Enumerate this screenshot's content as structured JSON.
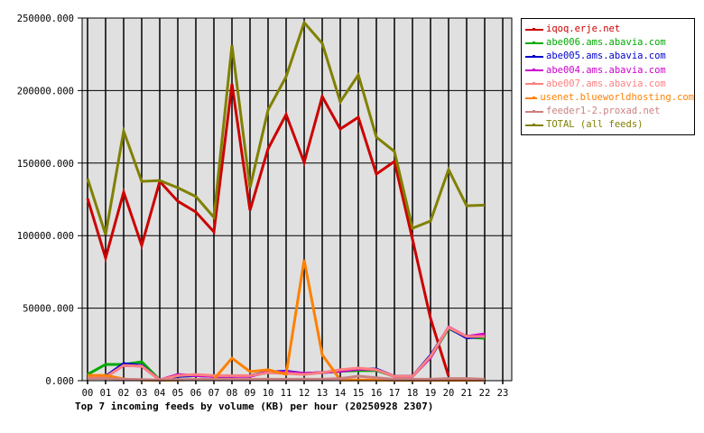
{
  "chart_data": {
    "type": "line",
    "title": "Top 7 incoming feeds by volume (KB) per hour (20250928 2307)",
    "xlabel": "",
    "ylabel": "",
    "ylim": [
      0,
      250000
    ],
    "yticks": [
      "0.000",
      "50000.000",
      "100000.000",
      "150000.000",
      "200000.000",
      "250000.000"
    ],
    "x": [
      "00",
      "01",
      "02",
      "03",
      "04",
      "05",
      "06",
      "07",
      "08",
      "09",
      "10",
      "11",
      "12",
      "13",
      "14",
      "15",
      "16",
      "17",
      "18",
      "19",
      "20",
      "21",
      "22",
      "23"
    ],
    "grid": true,
    "legend_position": "right",
    "series": [
      {
        "name": "iqoq.erje.net",
        "color": "#cc0000",
        "values": [
          125600,
          84600,
          130000,
          93300,
          137400,
          123700,
          116300,
          102600,
          204600,
          117500,
          159800,
          183500,
          150500,
          195900,
          173500,
          181600,
          142400,
          151100,
          97600,
          42900,
          3100,
          null,
          null,
          null
        ]
      },
      {
        "name": "abe006.ams.abavia.com",
        "color": "#00aa00",
        "values": [
          4300,
          11200,
          11200,
          13000,
          500,
          3000,
          3500,
          3000,
          3000,
          3500,
          5500,
          6000,
          5000,
          5600,
          6500,
          7000,
          7000,
          3000,
          3000,
          16000,
          36000,
          30000,
          29200,
          null
        ]
      },
      {
        "name": "abe005.ams.abavia.com",
        "color": "#0000cc",
        "values": [
          2500,
          3000,
          11800,
          10500,
          500,
          3000,
          3500,
          3000,
          3000,
          3500,
          6000,
          6500,
          5000,
          5600,
          6500,
          8000,
          8000,
          3000,
          3000,
          17500,
          36500,
          29500,
          30500,
          null
        ]
      },
      {
        "name": "abe004.ams.abavia.com",
        "color": "#cc00cc",
        "values": [
          2500,
          2500,
          10500,
          10000,
          500,
          4300,
          3500,
          3000,
          3000,
          3000,
          6000,
          6000,
          5000,
          5600,
          6500,
          8000,
          7500,
          3000,
          3000,
          16000,
          37000,
          30500,
          32300,
          null
        ]
      },
      {
        "name": "abe007.ams.abavia.com",
        "color": "#ff8080",
        "values": [
          2500,
          2500,
          10500,
          10000,
          500,
          3500,
          4300,
          3500,
          3500,
          3500,
          5500,
          5000,
          4300,
          5600,
          7500,
          8700,
          7500,
          3000,
          3000,
          16800,
          36700,
          30500,
          30500,
          null
        ]
      },
      {
        "name": "usenet.blueworldhosting.com",
        "color": "#ff8000",
        "values": [
          3700,
          3700,
          1200,
          500,
          300,
          500,
          800,
          1000,
          15500,
          6200,
          7500,
          4400,
          83300,
          18000,
          500,
          500,
          500,
          300,
          300,
          300,
          300,
          300,
          300,
          null
        ]
      },
      {
        "name": "feeder1-2.proxad.net",
        "color": "#cc8080",
        "values": [
          1500,
          1500,
          1000,
          800,
          500,
          800,
          800,
          1000,
          1000,
          1000,
          1000,
          1000,
          1000,
          1000,
          1500,
          3100,
          2000,
          1000,
          1000,
          1000,
          1500,
          1500,
          1000,
          null
        ]
      },
      {
        "name": "TOTAL (all feeds)",
        "color": "#808000",
        "values": [
          139300,
          100700,
          172000,
          137400,
          138000,
          133000,
          126900,
          112600,
          231300,
          133000,
          186600,
          209600,
          246900,
          232600,
          192200,
          210800,
          167900,
          158000,
          105100,
          110100,
          145500,
          120600,
          121000,
          null
        ]
      }
    ]
  },
  "caption": "Top 7 incoming feeds by volume (KB) per hour (20250928 2307)",
  "legend": {
    "items": [
      {
        "label": "iqoq.erje.net",
        "color": "#cc0000"
      },
      {
        "label": "abe006.ams.abavia.com",
        "color": "#00aa00"
      },
      {
        "label": "abe005.ams.abavia.com",
        "color": "#0000cc"
      },
      {
        "label": "abe004.ams.abavia.com",
        "color": "#cc00cc"
      },
      {
        "label": "abe007.ams.abavia.com",
        "color": "#ff8080"
      },
      {
        "label": "usenet.blueworldhosting.com",
        "color": "#ff8000"
      },
      {
        "label": "feeder1-2.proxad.net",
        "color": "#cc8080"
      },
      {
        "label": "TOTAL (all feeds)",
        "color": "#808000"
      }
    ]
  },
  "colors": {
    "plot_bg": "#e0e0e0",
    "grid": "#000000"
  }
}
